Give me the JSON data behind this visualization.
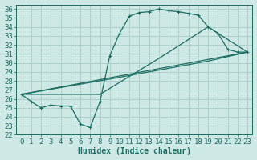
{
  "background_color": "#cde8e5",
  "grid_color": "#aed0cc",
  "line_color": "#1a6b60",
  "xlabel": "Humidex (Indice chaleur)",
  "xlim": [
    -0.5,
    23.5
  ],
  "ylim": [
    22,
    36.5
  ],
  "yticks": [
    22,
    23,
    24,
    25,
    26,
    27,
    28,
    29,
    30,
    31,
    32,
    33,
    34,
    35,
    36
  ],
  "xticks": [
    0,
    1,
    2,
    3,
    4,
    5,
    6,
    7,
    8,
    9,
    10,
    11,
    12,
    13,
    14,
    15,
    16,
    17,
    18,
    19,
    20,
    21,
    22,
    23
  ],
  "line1_x": [
    0,
    1,
    2,
    3,
    4,
    5,
    6,
    7,
    8,
    9,
    10,
    11,
    12,
    13,
    14,
    15,
    16,
    17,
    18,
    19,
    20,
    21,
    22,
    23
  ],
  "line1_y": [
    26.5,
    25.7,
    25.0,
    25.3,
    25.2,
    25.2,
    23.2,
    22.8,
    25.7,
    30.8,
    33.3,
    35.2,
    35.6,
    35.7,
    36.0,
    35.8,
    35.7,
    35.5,
    35.3,
    34.0,
    33.3,
    31.5,
    31.2,
    31.2
  ],
  "line2_x": [
    0,
    23
  ],
  "line2_y": [
    26.5,
    31.2
  ],
  "line3_x": [
    0,
    9,
    19,
    23
  ],
  "line3_y": [
    26.5,
    28.2,
    30.2,
    31.2
  ],
  "line4_x": [
    0,
    8,
    14,
    19,
    23
  ],
  "line4_y": [
    26.5,
    26.5,
    30.5,
    34.0,
    31.2
  ],
  "linewidth": 0.9,
  "fontsize_xlabel": 7,
  "fontsize_ticks": 6.5
}
